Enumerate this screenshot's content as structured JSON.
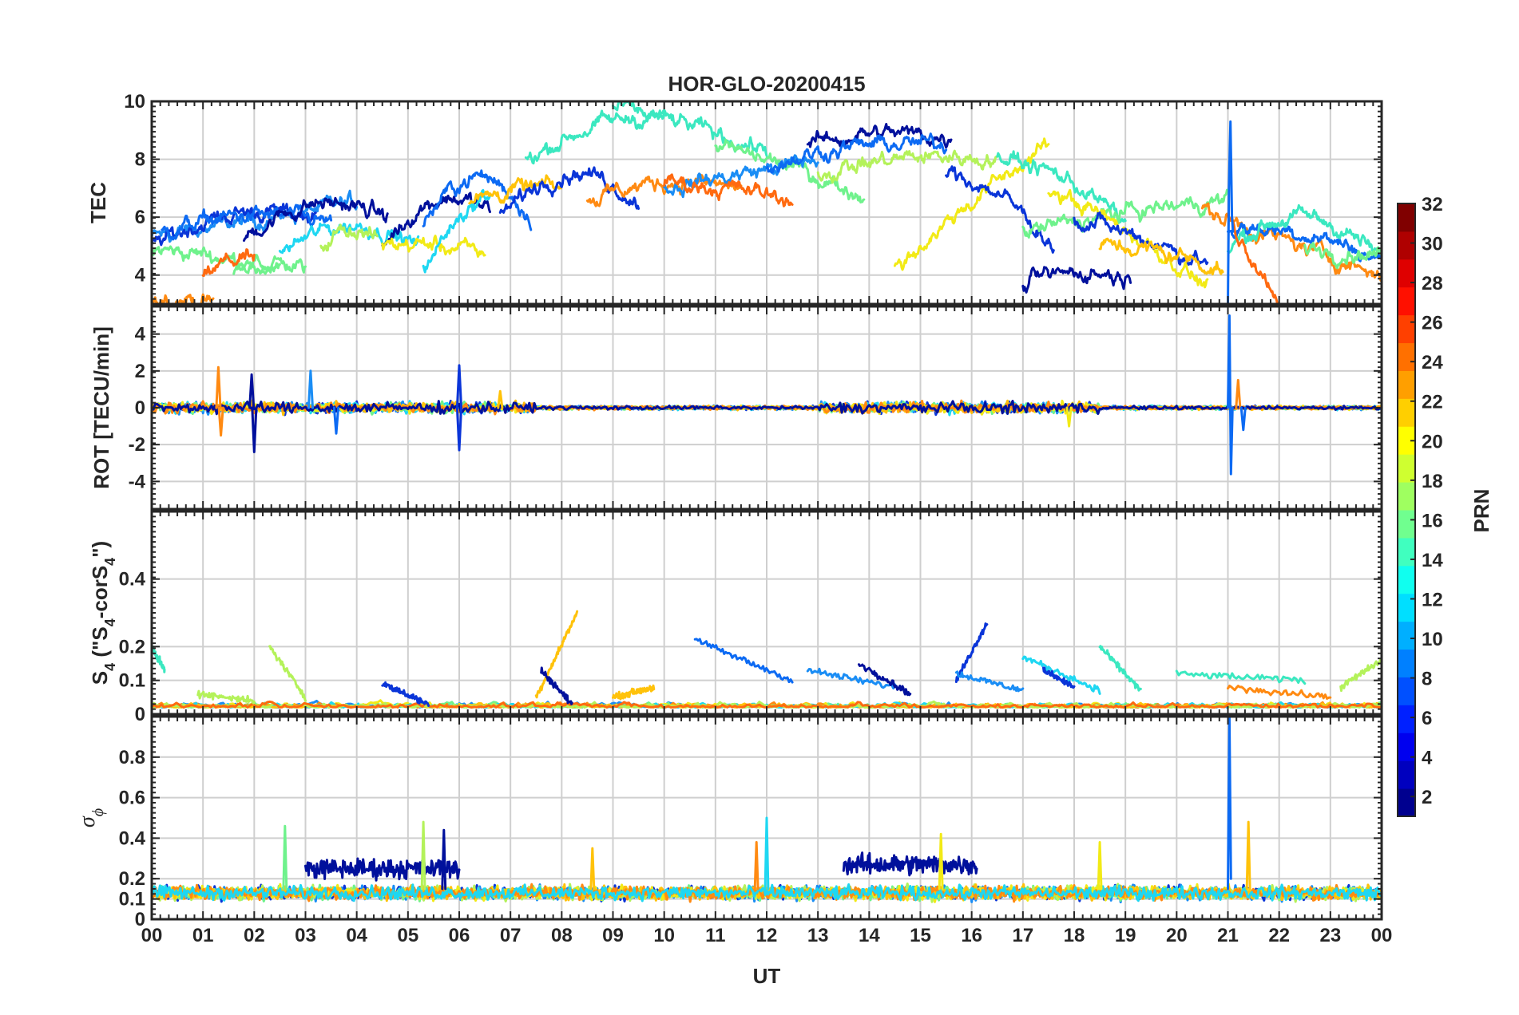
{
  "chart_data": {
    "type": "line",
    "title": "HOR-GLO-20200415",
    "xlabel": "UT",
    "x_ticks": [
      "00",
      "01",
      "02",
      "03",
      "04",
      "05",
      "06",
      "07",
      "08",
      "09",
      "10",
      "11",
      "12",
      "13",
      "14",
      "15",
      "16",
      "17",
      "18",
      "19",
      "20",
      "21",
      "22",
      "23",
      "00"
    ],
    "xlim": [
      0,
      24
    ],
    "grid": true,
    "panels": [
      {
        "id": "tec",
        "ylabel": "TEC",
        "ylim": [
          3,
          10
        ],
        "yticks": [
          4,
          6,
          8,
          10
        ],
        "yticklabels": [
          "4",
          "6",
          "8",
          "10"
        ]
      },
      {
        "id": "rot",
        "ylabel": "ROT [TECU/min]",
        "ylim": [
          -5.5,
          5.5
        ],
        "yticks": [
          -4,
          -2,
          0,
          2,
          4
        ],
        "yticklabels": [
          "-4",
          "-2",
          "0",
          "2",
          "4"
        ]
      },
      {
        "id": "s4",
        "ylabel": "S4 (\"S4-corS4\")",
        "ylabel_parts": {
          "s": "S",
          "sub": "4",
          "paren_open": " (\"S",
          "paren_sub": "4",
          "mid": "-corS",
          "mid_sub": "4",
          "close": "\")"
        },
        "ylim": [
          0,
          0.6
        ],
        "yticks": [
          0,
          0.1,
          0.2,
          0.4
        ],
        "yticklabels": [
          "0",
          "0.1",
          "0.2",
          "0.4"
        ]
      },
      {
        "id": "sigma",
        "ylabel": "σ ϕ",
        "ylabel_parts": {
          "main": "σ",
          "sub": "ϕ"
        },
        "ylim": [
          0,
          1
        ],
        "yticks": [
          0,
          0.1,
          0.2,
          0.4,
          0.6,
          0.8
        ],
        "yticklabels": [
          "0",
          "0.1",
          "0.2",
          "0.4",
          "0.6",
          "0.8"
        ]
      }
    ],
    "series": [
      {
        "name": "PRN 2",
        "prn": 2,
        "color": "#00109c"
      },
      {
        "name": "PRN 4",
        "prn": 4,
        "color": "#0a35d8"
      },
      {
        "name": "PRN 6",
        "prn": 6,
        "color": "#0c6af3"
      },
      {
        "name": "PRN 8",
        "prn": 8,
        "color": "#1a8df5"
      },
      {
        "name": "PRN 12",
        "prn": 12,
        "color": "#1ed7f2"
      },
      {
        "name": "PRN 14",
        "prn": 14,
        "color": "#3be8c0"
      },
      {
        "name": "PRN 16",
        "prn": 16,
        "color": "#6ff28c"
      },
      {
        "name": "PRN 18",
        "prn": 18,
        "color": "#b4f25a"
      },
      {
        "name": "PRN 20",
        "prn": 20,
        "color": "#f2ea16"
      },
      {
        "name": "PRN 22",
        "prn": 22,
        "color": "#ffc20a"
      },
      {
        "name": "PRN 24",
        "prn": 24,
        "color": "#ff8a12"
      },
      {
        "name": "PRN 25",
        "prn": 25,
        "color": "#ff6a10"
      }
    ],
    "colorbar": {
      "label": "PRN",
      "range": [
        1,
        32
      ],
      "ticks": [
        2,
        4,
        6,
        8,
        10,
        12,
        14,
        16,
        18,
        20,
        22,
        24,
        26,
        28,
        30,
        32
      ],
      "ticklabels": [
        "2",
        "4",
        "6",
        "8",
        "10",
        "12",
        "14",
        "16",
        "18",
        "20",
        "22",
        "24",
        "26",
        "28",
        "30",
        "32"
      ],
      "colors": [
        "#00008f",
        "#0000bf",
        "#0000ef",
        "#0020ff",
        "#0050ff",
        "#0080ff",
        "#00afff",
        "#00dfff",
        "#10ffef",
        "#40ffbf",
        "#70ff8f",
        "#9fff60",
        "#cfff30",
        "#ffff00",
        "#ffcf00",
        "#ff9f00",
        "#ff7000",
        "#ff4000",
        "#ff1000",
        "#df0000",
        "#af0000",
        "#800000"
      ]
    },
    "annotations": [
      "PRN 6 TEC spike near 21 UT reaching ~9.3 TECU",
      "PRN 6 ROT spike near 21 UT from ~-3.5 to ~5",
      "PRN 6 sigma-phi spike near 21 UT reaching ~1.0",
      "S4 enhancements up to ~0.3 near 08 UT (PRN 20/22) and ~0.27 near 16 UT (PRN 2/4)"
    ]
  }
}
